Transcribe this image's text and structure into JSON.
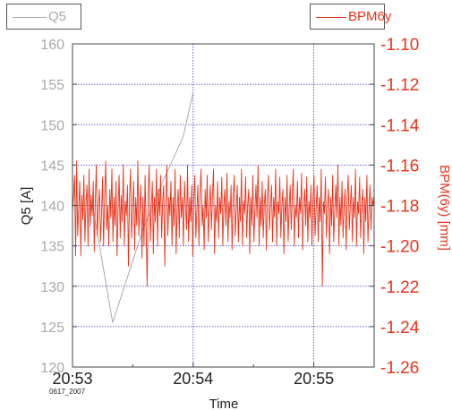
{
  "legend": {
    "left_series": "Q5",
    "right_series": "BPM6y"
  },
  "footnote": "0617_2007",
  "colors": {
    "left_series": "#aaaaaa",
    "right_series": "#e8341c",
    "grid": "#3a3ad0",
    "frame": "#444444"
  },
  "chart_data": {
    "type": "line",
    "xlabel": "Time",
    "ylabel_left": "Q5 [A]",
    "ylabel_right": "BPM(6y) [mm]",
    "x_range": [
      "20:53",
      "20:55:30"
    ],
    "x_ticks": [
      "20:53",
      "20:54",
      "20:55"
    ],
    "ylim_left": [
      120,
      160
    ],
    "yticks_left": [
      "120",
      "125",
      "130",
      "135",
      "140",
      "145",
      "150",
      "155",
      "160"
    ],
    "ylim_right": [
      -1.26,
      -1.1
    ],
    "yticks_right": [
      "-1.26",
      "-1.24",
      "-1.22",
      "-1.20",
      "-1.18",
      "-1.16",
      "-1.14",
      "-1.12",
      "-1.10"
    ],
    "grid": true,
    "series": [
      {
        "name": "Q5",
        "axis": "left",
        "x": [
          "20:53:00",
          "20:53:10",
          "20:53:20",
          "20:53:35",
          "20:53:45",
          "20:53:55",
          "20:54:00"
        ],
        "y": [
          140,
          140,
          125.5,
          137,
          143,
          148.5,
          154
        ]
      },
      {
        "name": "BPM6y",
        "axis": "right",
        "x_start": "20:53:00",
        "x_end": "20:55:30",
        "y": [
          -1.183,
          -1.175,
          -1.165,
          -1.205,
          -1.158,
          -1.195,
          -1.182,
          -1.168,
          -1.205,
          -1.175,
          -1.187,
          -1.165,
          -1.198,
          -1.178,
          -1.17,
          -1.2,
          -1.162,
          -1.19,
          -1.175,
          -1.185,
          -1.168,
          -1.203,
          -1.177,
          -1.16,
          -1.195,
          -1.18,
          -1.172,
          -1.198,
          -1.185,
          -1.166,
          -1.2,
          -1.176,
          -1.158,
          -1.192,
          -1.18,
          -1.2,
          -1.172,
          -1.186,
          -1.162,
          -1.198,
          -1.176,
          -1.19,
          -1.168,
          -1.205,
          -1.18,
          -1.165,
          -1.196,
          -1.175,
          -1.188,
          -1.16,
          -1.2,
          -1.178,
          -1.185,
          -1.17,
          -1.21,
          -1.176,
          -1.162,
          -1.196,
          -1.182,
          -1.168,
          -1.202,
          -1.176,
          -1.19,
          -1.158,
          -1.195,
          -1.18,
          -1.17,
          -1.206,
          -1.176,
          -1.2,
          -1.165,
          -1.19,
          -1.22,
          -1.175,
          -1.16,
          -1.198,
          -1.182,
          -1.168,
          -1.204,
          -1.176,
          -1.188,
          -1.162,
          -1.2,
          -1.172,
          -1.185,
          -1.165,
          -1.196,
          -1.178,
          -1.17,
          -1.21,
          -1.18,
          -1.16,
          -1.195,
          -1.176,
          -1.185,
          -1.168,
          -1.2,
          -1.176,
          -1.19,
          -1.162,
          -1.204,
          -1.18,
          -1.172,
          -1.196,
          -1.165,
          -1.186,
          -1.176,
          -1.2,
          -1.168,
          -1.18,
          -1.192,
          -1.16,
          -1.198,
          -1.176,
          -1.188,
          -1.17,
          -1.205,
          -1.178,
          -1.165,
          -1.196,
          -1.182,
          -1.17,
          -1.2,
          -1.175,
          -1.162,
          -1.19,
          -1.18,
          -1.202,
          -1.172,
          -1.186,
          -1.165,
          -1.198,
          -1.18,
          -1.17,
          -1.192,
          -1.176,
          -1.162,
          -1.204,
          -1.18,
          -1.188,
          -1.168,
          -1.196,
          -1.176,
          -1.184,
          -1.166,
          -1.2,
          -1.18,
          -1.172,
          -1.19,
          -1.164,
          -1.198,
          -1.178,
          -1.186,
          -1.17,
          -1.202,
          -1.176,
          -1.165,
          -1.195,
          -1.182,
          -1.17,
          -1.198,
          -1.176,
          -1.188,
          -1.162,
          -1.2,
          -1.178,
          -1.184,
          -1.166,
          -1.196,
          -1.18,
          -1.172,
          -1.204,
          -1.176,
          -1.19,
          -1.165,
          -1.198,
          -1.182,
          -1.17,
          -1.186,
          -1.16,
          -1.2,
          -1.176,
          -1.19,
          -1.168,
          -1.196,
          -1.18,
          -1.172,
          -1.202,
          -1.176,
          -1.165,
          -1.192,
          -1.18,
          -1.17,
          -1.198,
          -1.176,
          -1.186,
          -1.162,
          -1.2,
          -1.178,
          -1.184,
          -1.166,
          -1.196,
          -1.18,
          -1.172,
          -1.204,
          -1.176,
          -1.188,
          -1.165,
          -1.198,
          -1.182,
          -1.17,
          -1.192,
          -1.176,
          -1.162,
          -1.2,
          -1.18,
          -1.186,
          -1.168,
          -1.196,
          -1.176,
          -1.184,
          -1.164,
          -1.202,
          -1.18,
          -1.172,
          -1.19,
          -1.166,
          -1.198,
          -1.178,
          -1.186,
          -1.17,
          -1.2,
          -1.176,
          -1.165,
          -1.195,
          -1.182,
          -1.17,
          -1.198,
          -1.176,
          -1.188,
          -1.162,
          -1.22,
          -1.178,
          -1.184,
          -1.166,
          -1.196,
          -1.18,
          -1.172,
          -1.204,
          -1.176,
          -1.19,
          -1.165,
          -1.198,
          -1.182,
          -1.17,
          -1.186,
          -1.16,
          -1.2,
          -1.176,
          -1.19,
          -1.168,
          -1.196,
          -1.18,
          -1.172,
          -1.202,
          -1.176,
          -1.165,
          -1.192,
          -1.18,
          -1.17,
          -1.198,
          -1.176,
          -1.186,
          -1.162,
          -1.2,
          -1.178,
          -1.184,
          -1.166,
          -1.196,
          -1.18,
          -1.172,
          -1.204,
          -1.176,
          -1.188,
          -1.165,
          -1.198,
          -1.182,
          -1.17,
          -1.192,
          -1.176,
          -1.18,
          -1.175
        ]
      }
    ]
  }
}
